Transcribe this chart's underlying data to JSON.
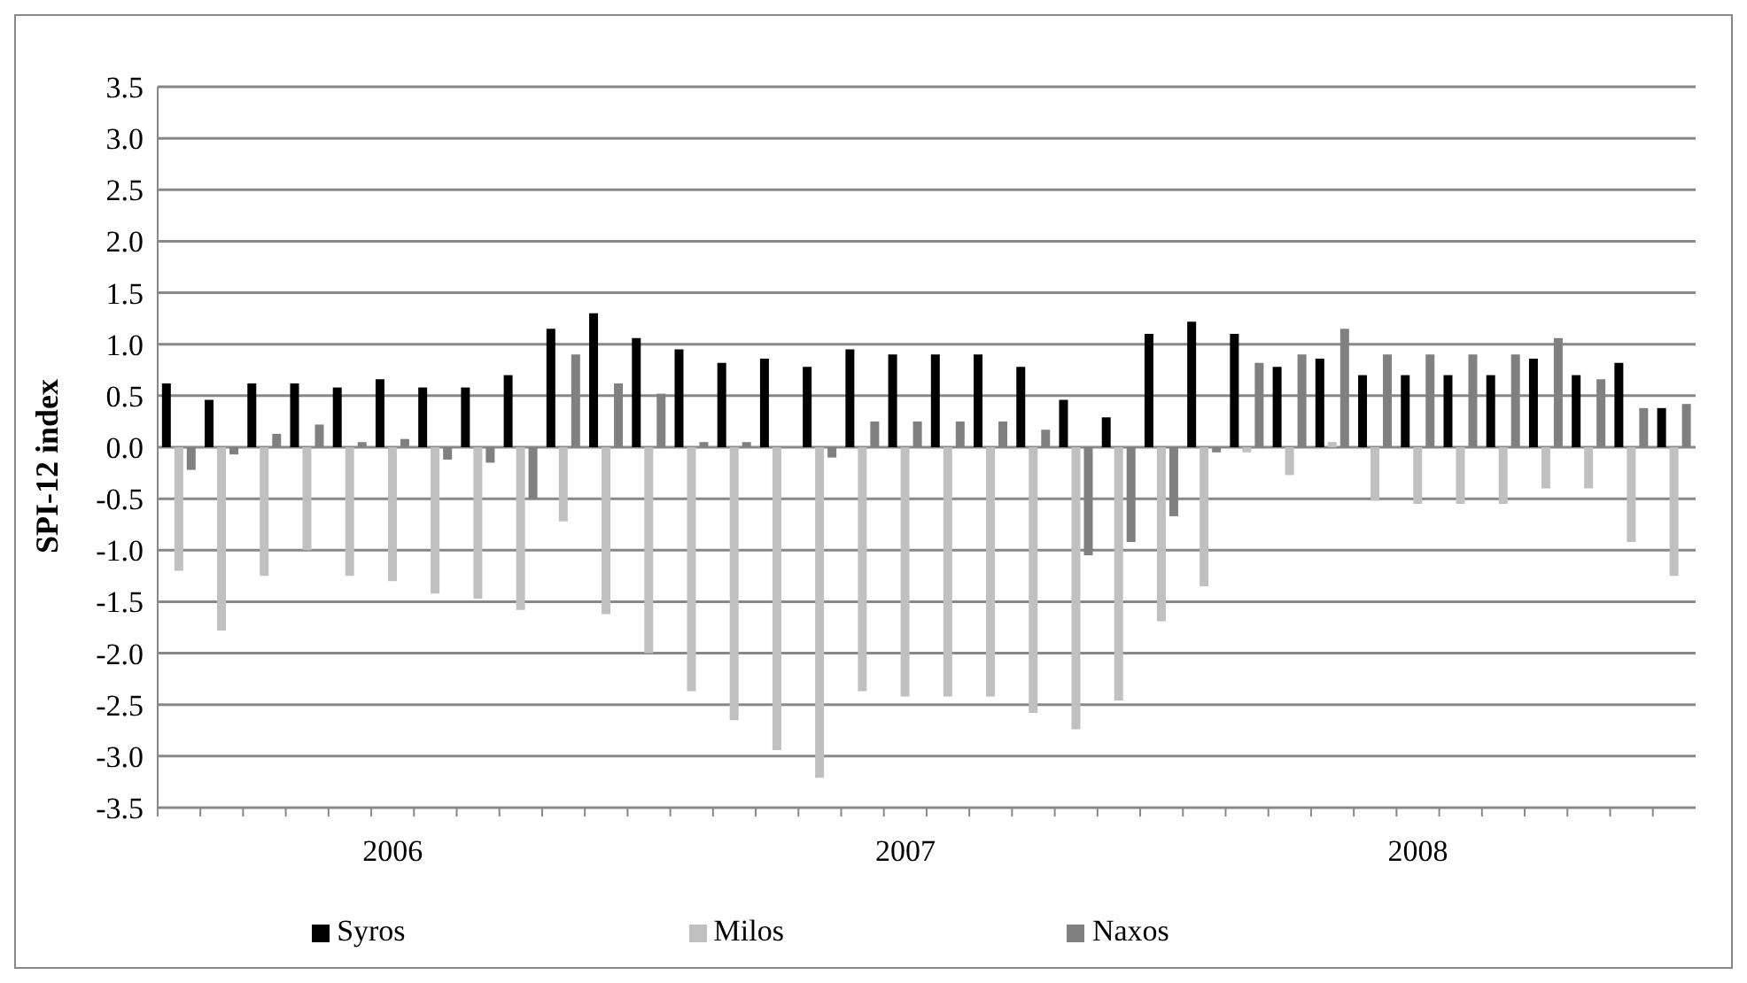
{
  "chart_data": {
    "type": "bar",
    "ylabel": "SPI-12 index",
    "categories": [
      null,
      null,
      null,
      null,
      null,
      "2006",
      null,
      null,
      null,
      null,
      null,
      null,
      null,
      null,
      null,
      null,
      null,
      "2007",
      null,
      null,
      null,
      null,
      null,
      null,
      null,
      null,
      null,
      null,
      null,
      "2008",
      null,
      null,
      null,
      null,
      null,
      null
    ],
    "series": [
      {
        "name": "Syros",
        "color": "#000000",
        "values": [
          0.62,
          0.46,
          0.62,
          0.62,
          0.58,
          0.66,
          0.58,
          0.58,
          0.7,
          1.15,
          1.3,
          1.06,
          0.95,
          0.82,
          0.86,
          0.78,
          0.95,
          0.9,
          0.9,
          0.9,
          0.78,
          0.46,
          0.29,
          1.1,
          1.22,
          1.1,
          0.78,
          0.86,
          0.7,
          0.7,
          0.7,
          0.7,
          0.86,
          0.7,
          0.82,
          0.38
        ]
      },
      {
        "name": "Milos",
        "color": "#c0c0c0",
        "values": [
          -1.2,
          -1.78,
          -1.25,
          -1.0,
          -1.25,
          -1.3,
          -1.42,
          -1.47,
          -1.58,
          -0.72,
          -1.62,
          -2.0,
          -2.37,
          -2.65,
          -2.94,
          -3.21,
          -2.37,
          -2.42,
          -2.42,
          -2.42,
          -2.58,
          -2.74,
          -2.46,
          -1.69,
          -1.35,
          -0.05,
          -0.27,
          0.05,
          -0.52,
          -0.55,
          -0.55,
          -0.55,
          -0.4,
          -0.4,
          -0.92,
          -1.25
        ]
      },
      {
        "name": "Naxos",
        "color": "#808080",
        "values": [
          -0.22,
          -0.07,
          0.13,
          0.22,
          0.05,
          0.08,
          -0.12,
          -0.15,
          -0.5,
          0.9,
          0.62,
          0.52,
          0.05,
          0.05,
          0.0,
          -0.1,
          0.25,
          0.25,
          0.25,
          0.25,
          0.17,
          -1.05,
          -0.92,
          -0.67,
          -0.05,
          0.82,
          0.9,
          1.15,
          0.9,
          0.9,
          0.9,
          0.9,
          1.06,
          0.66,
          0.38,
          0.42
        ]
      }
    ],
    "ylim": [
      -3.5,
      3.5
    ],
    "yticks": [
      {
        "value": -3.5,
        "label": "-3.5"
      },
      {
        "value": -3,
        "label": "-3.0"
      },
      {
        "value": -2.5,
        "label": "-2.5"
      },
      {
        "value": -2,
        "label": "-2.0"
      },
      {
        "value": -1.5,
        "label": "-1.5"
      },
      {
        "value": -1,
        "label": "-1.0"
      },
      {
        "value": -0.5,
        "label": "-0.5"
      },
      {
        "value": 0,
        "label": "0.0"
      },
      {
        "value": 0.5,
        "label": "0.5"
      },
      {
        "value": 1,
        "label": "1.0"
      },
      {
        "value": 1.5,
        "label": "1.5"
      },
      {
        "value": 2,
        "label": "2.0"
      },
      {
        "value": 2.5,
        "label": "2.5"
      },
      {
        "value": 3,
        "label": "3.0"
      },
      {
        "value": 3.5,
        "label": "3.5"
      }
    ],
    "grid": "y",
    "legend": "bottom"
  }
}
